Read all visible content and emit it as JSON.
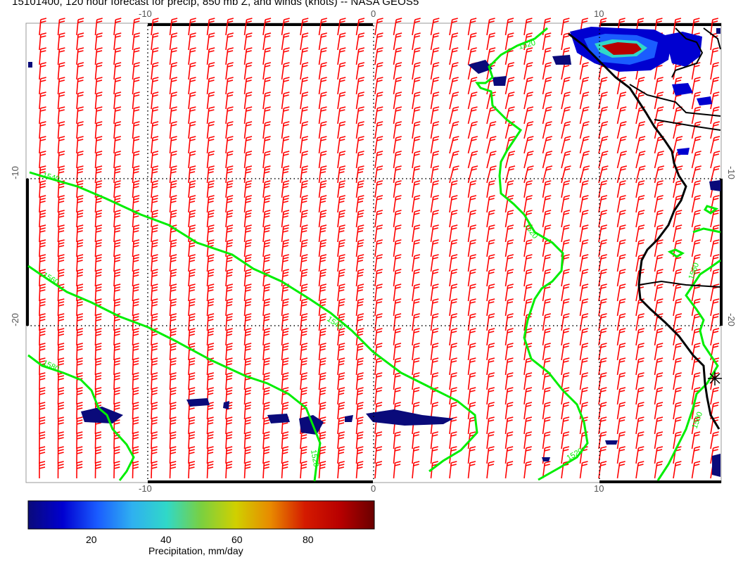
{
  "title": "15101400, 120 hour forecast for precip, 850 mb Z, and winds (knots) -- NASA GEOS5",
  "axes": {
    "lon_ticks": [
      "-10",
      "0",
      "10"
    ],
    "lat_ticks": [
      "-10",
      "-20"
    ]
  },
  "contour_labels": [
    "1520",
    "1520",
    "1540",
    "1560",
    "1580",
    "1540",
    "1520",
    "1520",
    "1560",
    "1500",
    "1520"
  ],
  "colorbar": {
    "label": "Precipitation, mm/day",
    "ticks": [
      "20",
      "40",
      "60",
      "80"
    ],
    "colors": [
      "#0a0a7a",
      "#0000d0",
      "#1a5cff",
      "#2fb0f0",
      "#30d8c8",
      "#7ad040",
      "#d0d000",
      "#e88a00",
      "#d41a00",
      "#b80000",
      "#6a0000"
    ]
  },
  "colors": {
    "wind_barbs": "#ff0000",
    "contours": "#00ee00",
    "coastline": "#000000",
    "gridlines": "#000000"
  },
  "icons": [
    "station-marker-icon"
  ]
}
